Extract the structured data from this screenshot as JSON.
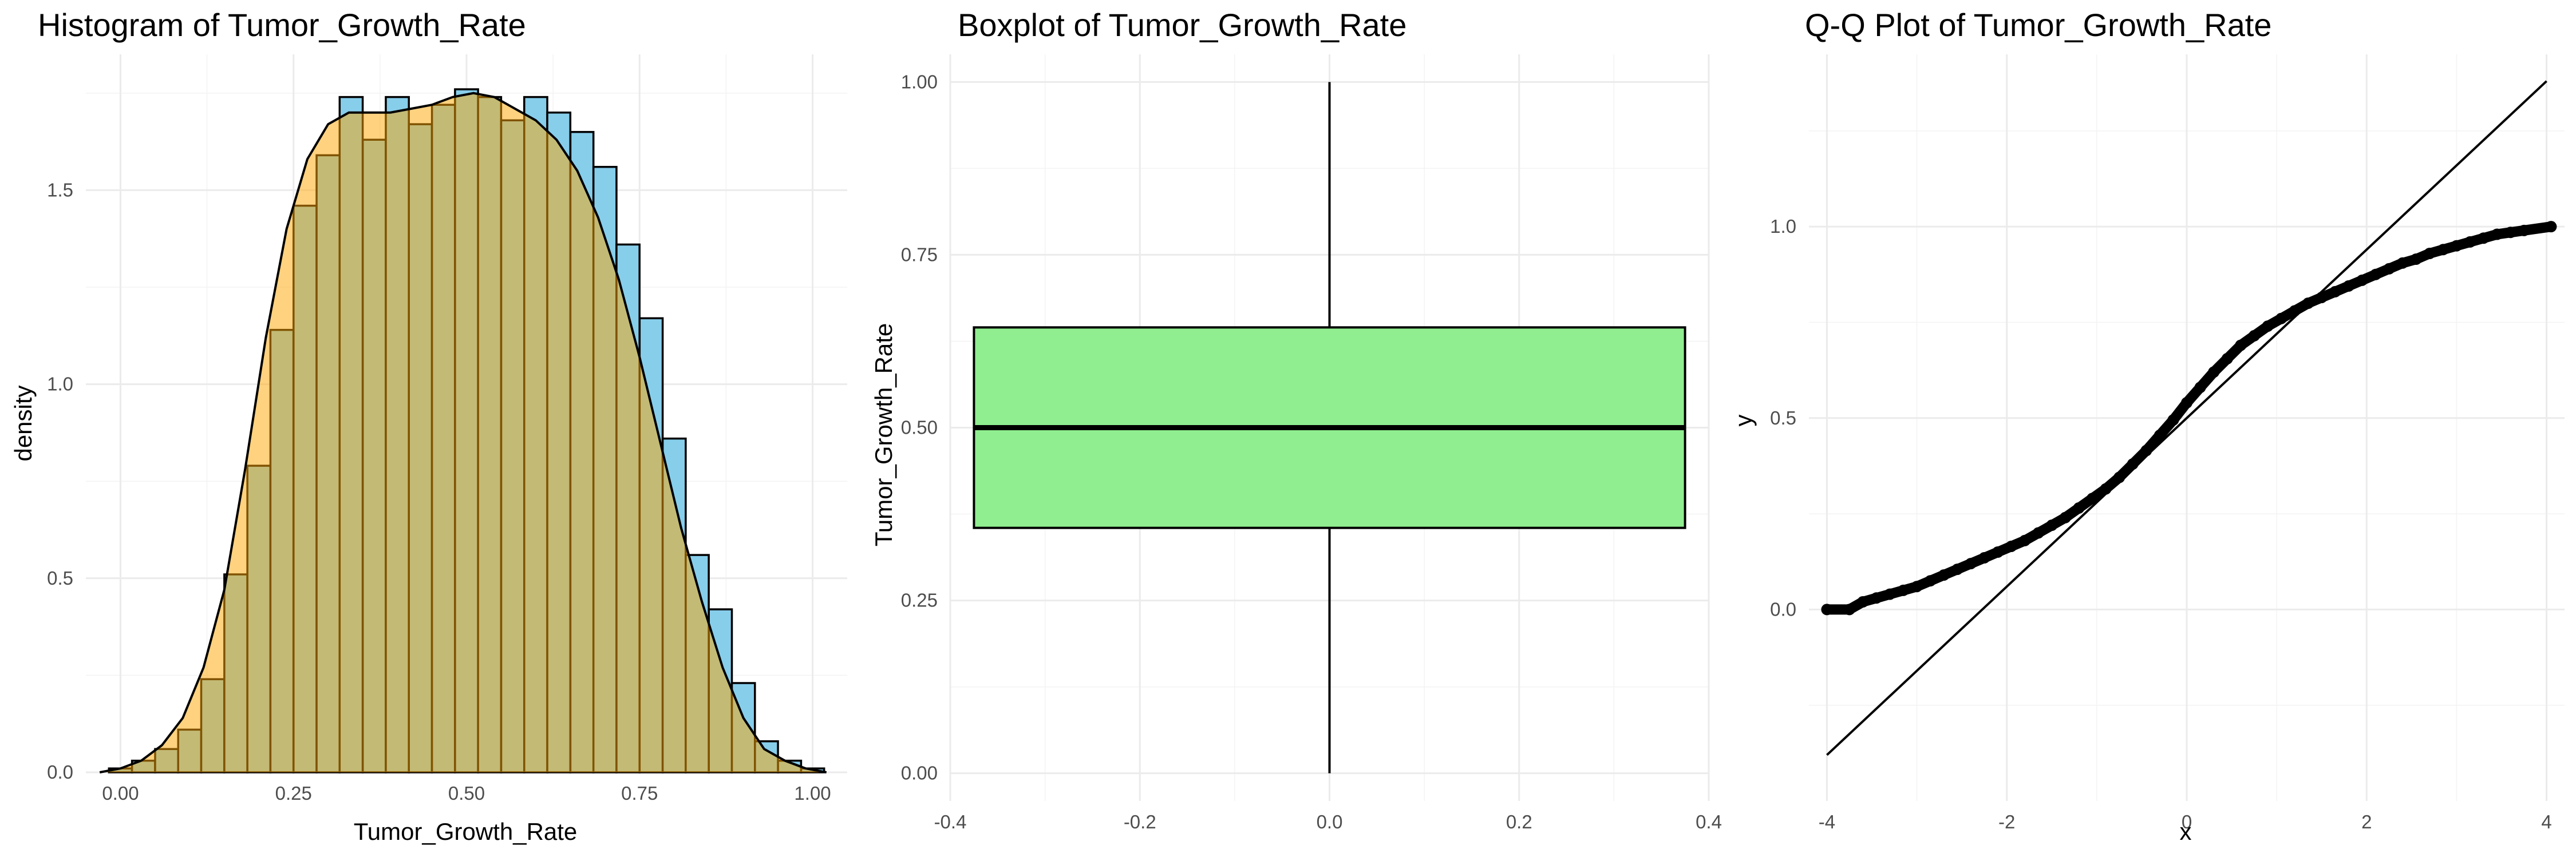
{
  "colors": {
    "histogram_fill": "#87ceeb",
    "density_fill": "#ffa500",
    "box_fill": "#90ee90",
    "outline": "#000000",
    "grid": "#ebebeb"
  },
  "chart_data": [
    {
      "type": "histogram",
      "title": "Histogram of Tumor_Growth_Rate",
      "xlabel": "Tumor_Growth_Rate",
      "ylabel": "density",
      "xlim": [
        -0.05,
        1.05
      ],
      "ylim": [
        0,
        1.85
      ],
      "xticks": [
        0.0,
        0.25,
        0.5,
        0.75,
        1.0
      ],
      "xtick_labels": [
        "0.00",
        "0.25",
        "0.50",
        "0.75",
        "1.00"
      ],
      "yticks": [
        0.0,
        0.5,
        1.0,
        1.5
      ],
      "ytick_labels": [
        "0.0",
        "0.5",
        "1.0",
        "1.5"
      ],
      "grid": true,
      "bin_width": 0.0333,
      "bin_centers": [
        0.0,
        0.0333,
        0.0667,
        0.1,
        0.1333,
        0.1667,
        0.2,
        0.2333,
        0.2667,
        0.3,
        0.3333,
        0.3667,
        0.4,
        0.4333,
        0.4667,
        0.5,
        0.5333,
        0.5667,
        0.6,
        0.6333,
        0.6667,
        0.7,
        0.7333,
        0.7667,
        0.8,
        0.8333,
        0.8667,
        0.9,
        0.9333,
        0.9667,
        1.0
      ],
      "values": [
        0.01,
        0.03,
        0.06,
        0.11,
        0.24,
        0.51,
        0.79,
        1.14,
        1.46,
        1.59,
        1.74,
        1.63,
        1.74,
        1.67,
        1.72,
        1.76,
        1.74,
        1.68,
        1.74,
        1.7,
        1.65,
        1.56,
        1.36,
        1.17,
        0.86,
        0.56,
        0.42,
        0.23,
        0.08,
        0.03,
        0.01
      ],
      "density_curve": {
        "x": [
          -0.03,
          0.0,
          0.03,
          0.06,
          0.09,
          0.12,
          0.15,
          0.18,
          0.21,
          0.24,
          0.27,
          0.3,
          0.33,
          0.36,
          0.39,
          0.42,
          0.45,
          0.48,
          0.51,
          0.54,
          0.57,
          0.6,
          0.63,
          0.66,
          0.69,
          0.72,
          0.75,
          0.78,
          0.81,
          0.84,
          0.87,
          0.9,
          0.93,
          0.96,
          0.99,
          1.02
        ],
        "y": [
          0.0,
          0.01,
          0.03,
          0.07,
          0.14,
          0.27,
          0.47,
          0.78,
          1.12,
          1.4,
          1.58,
          1.67,
          1.7,
          1.7,
          1.7,
          1.71,
          1.72,
          1.74,
          1.75,
          1.74,
          1.71,
          1.68,
          1.63,
          1.55,
          1.43,
          1.27,
          1.07,
          0.85,
          0.63,
          0.44,
          0.27,
          0.14,
          0.06,
          0.03,
          0.01,
          0.0
        ]
      }
    },
    {
      "type": "boxplot",
      "title": "Boxplot of Tumor_Growth_Rate",
      "xlabel": "",
      "ylabel": "Tumor_Growth_Rate",
      "xlim": [
        -0.4,
        0.4
      ],
      "ylim": [
        -0.04,
        1.04
      ],
      "xticks": [
        -0.4,
        -0.2,
        0.0,
        0.2,
        0.4
      ],
      "xtick_labels": [
        "-0.4",
        "-0.2",
        "0.0",
        "0.2",
        "0.4"
      ],
      "yticks": [
        0.0,
        0.25,
        0.5,
        0.75,
        1.0
      ],
      "ytick_labels": [
        "0.00",
        "0.25",
        "0.50",
        "0.75",
        "1.00"
      ],
      "grid": true,
      "box": {
        "x_left": -0.375,
        "x_right": 0.375,
        "min": 0.0,
        "q1": 0.355,
        "median": 0.5,
        "q3": 0.645,
        "max": 1.0
      }
    },
    {
      "type": "scatter",
      "title": "Q-Q Plot of Tumor_Growth_Rate",
      "xlabel": "x",
      "ylabel": "y",
      "xlim": [
        -4.2,
        4.2
      ],
      "ylim": [
        -0.5,
        1.45
      ],
      "xticks": [
        -4,
        -2,
        0,
        2,
        4
      ],
      "xtick_labels": [
        "-4",
        "-2",
        "0",
        "2",
        "4"
      ],
      "yticks": [
        0.0,
        0.5,
        1.0
      ],
      "ytick_labels": [
        "0.0",
        "0.5",
        "1.0"
      ],
      "grid": true,
      "reference_line": {
        "x": [
          -4.0,
          4.0
        ],
        "y": [
          -0.38,
          1.38
        ]
      },
      "sample_points": {
        "x": [
          -4.0,
          -3.75,
          -3.6,
          -3.45,
          -3.3,
          -3.15,
          -3.0,
          -2.85,
          -2.7,
          -2.55,
          -2.4,
          -2.25,
          -2.1,
          -1.95,
          -1.8,
          -1.65,
          -1.5,
          -1.35,
          -1.2,
          -1.05,
          -0.9,
          -0.75,
          -0.6,
          -0.45,
          -0.3,
          -0.15,
          0.0,
          0.15,
          0.3,
          0.45,
          0.6,
          0.75,
          0.9,
          1.05,
          1.2,
          1.35,
          1.5,
          1.65,
          1.8,
          1.95,
          2.1,
          2.25,
          2.4,
          2.55,
          2.7,
          2.85,
          3.0,
          3.15,
          3.3,
          3.45,
          3.6,
          3.75,
          4.05
        ],
        "y": [
          0.0,
          0.0,
          0.02,
          0.03,
          0.04,
          0.05,
          0.06,
          0.075,
          0.09,
          0.105,
          0.12,
          0.135,
          0.15,
          0.165,
          0.18,
          0.2,
          0.22,
          0.24,
          0.265,
          0.29,
          0.315,
          0.345,
          0.38,
          0.415,
          0.455,
          0.495,
          0.54,
          0.58,
          0.62,
          0.655,
          0.69,
          0.715,
          0.74,
          0.76,
          0.78,
          0.8,
          0.815,
          0.83,
          0.845,
          0.86,
          0.875,
          0.89,
          0.905,
          0.915,
          0.93,
          0.94,
          0.95,
          0.96,
          0.97,
          0.98,
          0.985,
          0.99,
          1.0
        ]
      }
    }
  ]
}
